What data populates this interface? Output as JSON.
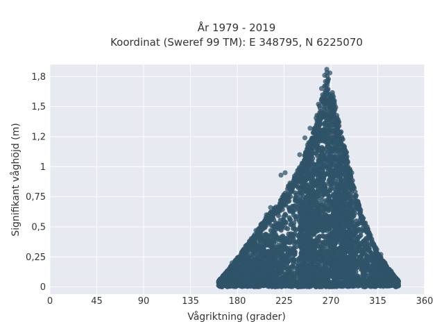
{
  "chart_data": {
    "type": "scatter",
    "title": [
      "År 1979 - 2019",
      "Koordinat (Sweref 99 TM): E 348795, N 6225070"
    ],
    "xlabel": "Vågriktning (grader)",
    "ylabel": "Signifikant våghöjd (m)",
    "xlim": [
      0,
      360
    ],
    "ylim": [
      -0.06,
      1.85
    ],
    "x_ticks": [
      0,
      45,
      90,
      135,
      180,
      225,
      270,
      315,
      360
    ],
    "x_tick_labels": [
      "0",
      "45",
      "90",
      "135",
      "180",
      "225",
      "270",
      "315",
      "360"
    ],
    "y_ticks": [
      0,
      0.25,
      0.5,
      0.75,
      1,
      1.25,
      1.5,
      1.75
    ],
    "y_tick_labels": [
      "0",
      "0,25",
      "0,5",
      "0,75",
      "1",
      "1,2",
      "1,5",
      "1,8"
    ],
    "grid": true,
    "legend": "none",
    "marker_color": "#2f5368",
    "plot_background": "#e8eaf1",
    "envelope_upper": [
      [
        162,
        0.05
      ],
      [
        170,
        0.13
      ],
      [
        180,
        0.24
      ],
      [
        190,
        0.36
      ],
      [
        200,
        0.48
      ],
      [
        207,
        0.58
      ],
      [
        212,
        0.62
      ],
      [
        220,
        0.7
      ],
      [
        225,
        0.78
      ],
      [
        230,
        0.87
      ],
      [
        238,
        0.97
      ],
      [
        243,
        1.05
      ],
      [
        248,
        1.2
      ],
      [
        252,
        1.28
      ],
      [
        255,
        1.38
      ],
      [
        258,
        1.5
      ],
      [
        262,
        1.62
      ],
      [
        265,
        1.72
      ],
      [
        266,
        1.8
      ],
      [
        268,
        1.72
      ],
      [
        272,
        1.6
      ],
      [
        276,
        1.45
      ],
      [
        280,
        1.3
      ],
      [
        285,
        1.1
      ],
      [
        290,
        0.92
      ],
      [
        295,
        0.75
      ],
      [
        300,
        0.6
      ],
      [
        305,
        0.5
      ],
      [
        310,
        0.38
      ],
      [
        315,
        0.3
      ],
      [
        320,
        0.22
      ],
      [
        325,
        0.16
      ],
      [
        330,
        0.1
      ],
      [
        335,
        0.05
      ]
    ],
    "outliers": [
      [
        222,
        0.93
      ],
      [
        226,
        0.95
      ],
      [
        229,
        0.84
      ],
      [
        233,
        0.82
      ],
      [
        236,
        0.9
      ],
      [
        240,
        1.1
      ],
      [
        245,
        1.24
      ],
      [
        250,
        1.32
      ],
      [
        258,
        1.52
      ],
      [
        261,
        1.65
      ],
      [
        264,
        1.76
      ],
      [
        266,
        1.81
      ],
      [
        269,
        1.78
      ],
      [
        285,
        1.12
      ],
      [
        290,
        0.95
      ],
      [
        296,
        0.71
      ],
      [
        300,
        0.58
      ],
      [
        308,
        0.43
      ],
      [
        313,
        0.32
      ],
      [
        318,
        0.27
      ],
      [
        322,
        0.2
      ],
      [
        328,
        0.13
      ],
      [
        334,
        0.06
      ],
      [
        212,
        0.66
      ],
      [
        208,
        0.6
      ],
      [
        198,
        0.47
      ],
      [
        188,
        0.34
      ],
      [
        175,
        0.2
      ],
      [
        166,
        0.08
      ]
    ]
  }
}
